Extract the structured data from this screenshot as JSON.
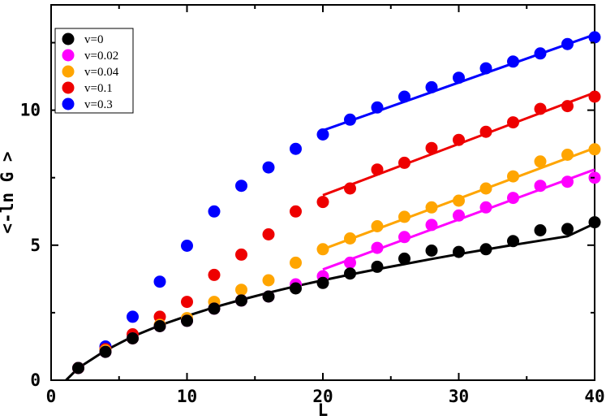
{
  "chart_data": {
    "type": "scatter",
    "title": "",
    "xlabel": "L",
    "ylabel": "<-ln G >",
    "xlim": [
      0,
      40
    ],
    "ylim": [
      0,
      13.9
    ],
    "xticks": [
      0,
      10,
      20,
      30,
      40
    ],
    "yticks": [
      0,
      5,
      10
    ],
    "grid": false,
    "legend_position": "top-left",
    "series": [
      {
        "name": "v=0",
        "color": "#000000",
        "x": [
          2,
          4,
          6,
          8,
          10,
          12,
          14,
          16,
          18,
          20,
          22,
          24,
          26,
          28,
          30,
          32,
          34,
          36,
          38,
          40
        ],
        "y": [
          0.45,
          1.05,
          1.55,
          2.0,
          2.2,
          2.65,
          2.95,
          3.1,
          3.4,
          3.6,
          3.95,
          4.2,
          4.5,
          4.8,
          4.75,
          4.85,
          5.15,
          5.55,
          5.6,
          5.85
        ],
        "fit": {
          "x_from": 1.1,
          "x_to": 40,
          "y_samples": [
            [
              1.1,
              0.0
            ],
            [
              2,
              0.45
            ],
            [
              4,
              1.1
            ],
            [
              6,
              1.62
            ],
            [
              8,
              2.03
            ],
            [
              10,
              2.38
            ],
            [
              12,
              2.7
            ],
            [
              14,
              2.98
            ],
            [
              16,
              3.24
            ],
            [
              18,
              3.48
            ],
            [
              20,
              3.7
            ],
            [
              22,
              3.91
            ],
            [
              24,
              4.11
            ],
            [
              26,
              4.3
            ],
            [
              28,
              4.49
            ],
            [
              30,
              4.67
            ],
            [
              32,
              4.84
            ],
            [
              34,
              5.01
            ],
            [
              36,
              5.17
            ],
            [
              38,
              5.33
            ],
            [
              40,
              5.8
            ]
          ]
        }
      },
      {
        "name": "v=0.02",
        "color": "#ff00ff",
        "x": [
          2,
          4,
          6,
          8,
          10,
          12,
          14,
          16,
          18,
          20,
          22,
          24,
          26,
          28,
          30,
          32,
          34,
          36,
          38,
          40
        ],
        "y": [
          0.45,
          1.05,
          1.55,
          2.0,
          2.2,
          2.65,
          2.95,
          3.1,
          3.55,
          3.85,
          4.35,
          4.9,
          5.3,
          5.75,
          6.1,
          6.4,
          6.75,
          7.2,
          7.35,
          7.5
        ],
        "fit": {
          "x_from": 20,
          "x_to": 40,
          "y_samples": [
            [
              20,
              4.1
            ],
            [
              40,
              7.8
            ]
          ]
        }
      },
      {
        "name": "v=0.04",
        "color": "#ffa500",
        "x": [
          2,
          4,
          6,
          8,
          10,
          12,
          14,
          16,
          18,
          20,
          22,
          24,
          26,
          28,
          30,
          32,
          34,
          36,
          38,
          40
        ],
        "y": [
          0.45,
          1.1,
          1.55,
          2.05,
          2.3,
          2.9,
          3.35,
          3.7,
          4.35,
          4.85,
          5.25,
          5.7,
          6.05,
          6.4,
          6.65,
          7.1,
          7.55,
          8.1,
          8.35,
          8.55
        ],
        "fit": {
          "x_from": 20,
          "x_to": 40,
          "y_samples": [
            [
              20,
              4.85
            ],
            [
              40,
              8.6
            ]
          ]
        }
      },
      {
        "name": "v=0.1",
        "color": "#ee0000",
        "x": [
          2,
          4,
          6,
          8,
          10,
          12,
          14,
          16,
          18,
          20,
          22,
          24,
          26,
          28,
          30,
          32,
          34,
          36,
          38,
          40
        ],
        "y": [
          0.45,
          1.15,
          1.7,
          2.35,
          2.9,
          3.9,
          4.65,
          5.4,
          6.25,
          6.6,
          7.1,
          7.8,
          8.05,
          8.6,
          8.9,
          9.2,
          9.55,
          10.05,
          10.15,
          10.5
        ],
        "fit": {
          "x_from": 20,
          "x_to": 40,
          "y_samples": [
            [
              20,
              6.85
            ],
            [
              40,
              10.65
            ]
          ]
        }
      },
      {
        "name": "v=0.3",
        "color": "#0000ff",
        "x": [
          2,
          4,
          6,
          8,
          10,
          12,
          14,
          16,
          18,
          20,
          22,
          24,
          26,
          28,
          30,
          32,
          34,
          36,
          38,
          40
        ],
        "y": [
          0.45,
          1.25,
          2.35,
          3.65,
          4.98,
          6.25,
          7.2,
          7.88,
          8.57,
          9.1,
          9.65,
          10.1,
          10.5,
          10.85,
          11.2,
          11.55,
          11.8,
          12.1,
          12.45,
          12.7
        ],
        "fit": {
          "x_from": 20,
          "x_to": 40,
          "y_samples": [
            [
              20,
              9.25
            ],
            [
              40,
              12.8
            ]
          ]
        }
      }
    ]
  }
}
